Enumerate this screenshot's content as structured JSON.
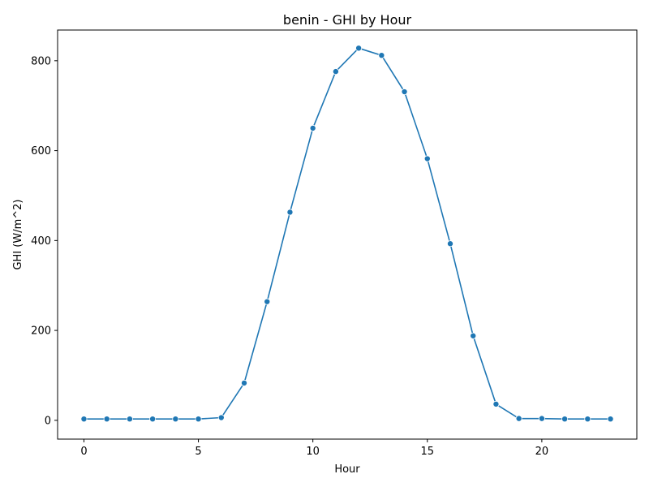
{
  "chart_data": {
    "type": "line",
    "title": "benin - GHI by Hour",
    "xlabel": "Hour",
    "ylabel": "GHI (W/m^2)",
    "xlim": [
      -1.15,
      24.15
    ],
    "ylim": [
      -41.8,
      868.3
    ],
    "xticks": [
      0,
      5,
      10,
      15,
      20
    ],
    "yticks": [
      0,
      200,
      400,
      600,
      800
    ],
    "grid": false,
    "legend": false,
    "color": "#1f77b4",
    "series": [
      {
        "x": [
          0,
          1,
          2,
          3,
          4,
          5,
          6,
          7,
          8,
          9,
          10,
          11,
          12,
          13,
          14,
          15,
          16,
          17,
          18,
          19,
          20,
          21,
          22,
          23
        ],
        "values": [
          3,
          3,
          3,
          3,
          3,
          3,
          6,
          83,
          264,
          463,
          650,
          776,
          828,
          812,
          731,
          582,
          393,
          188,
          36,
          4,
          4,
          3,
          3,
          3
        ]
      }
    ]
  }
}
